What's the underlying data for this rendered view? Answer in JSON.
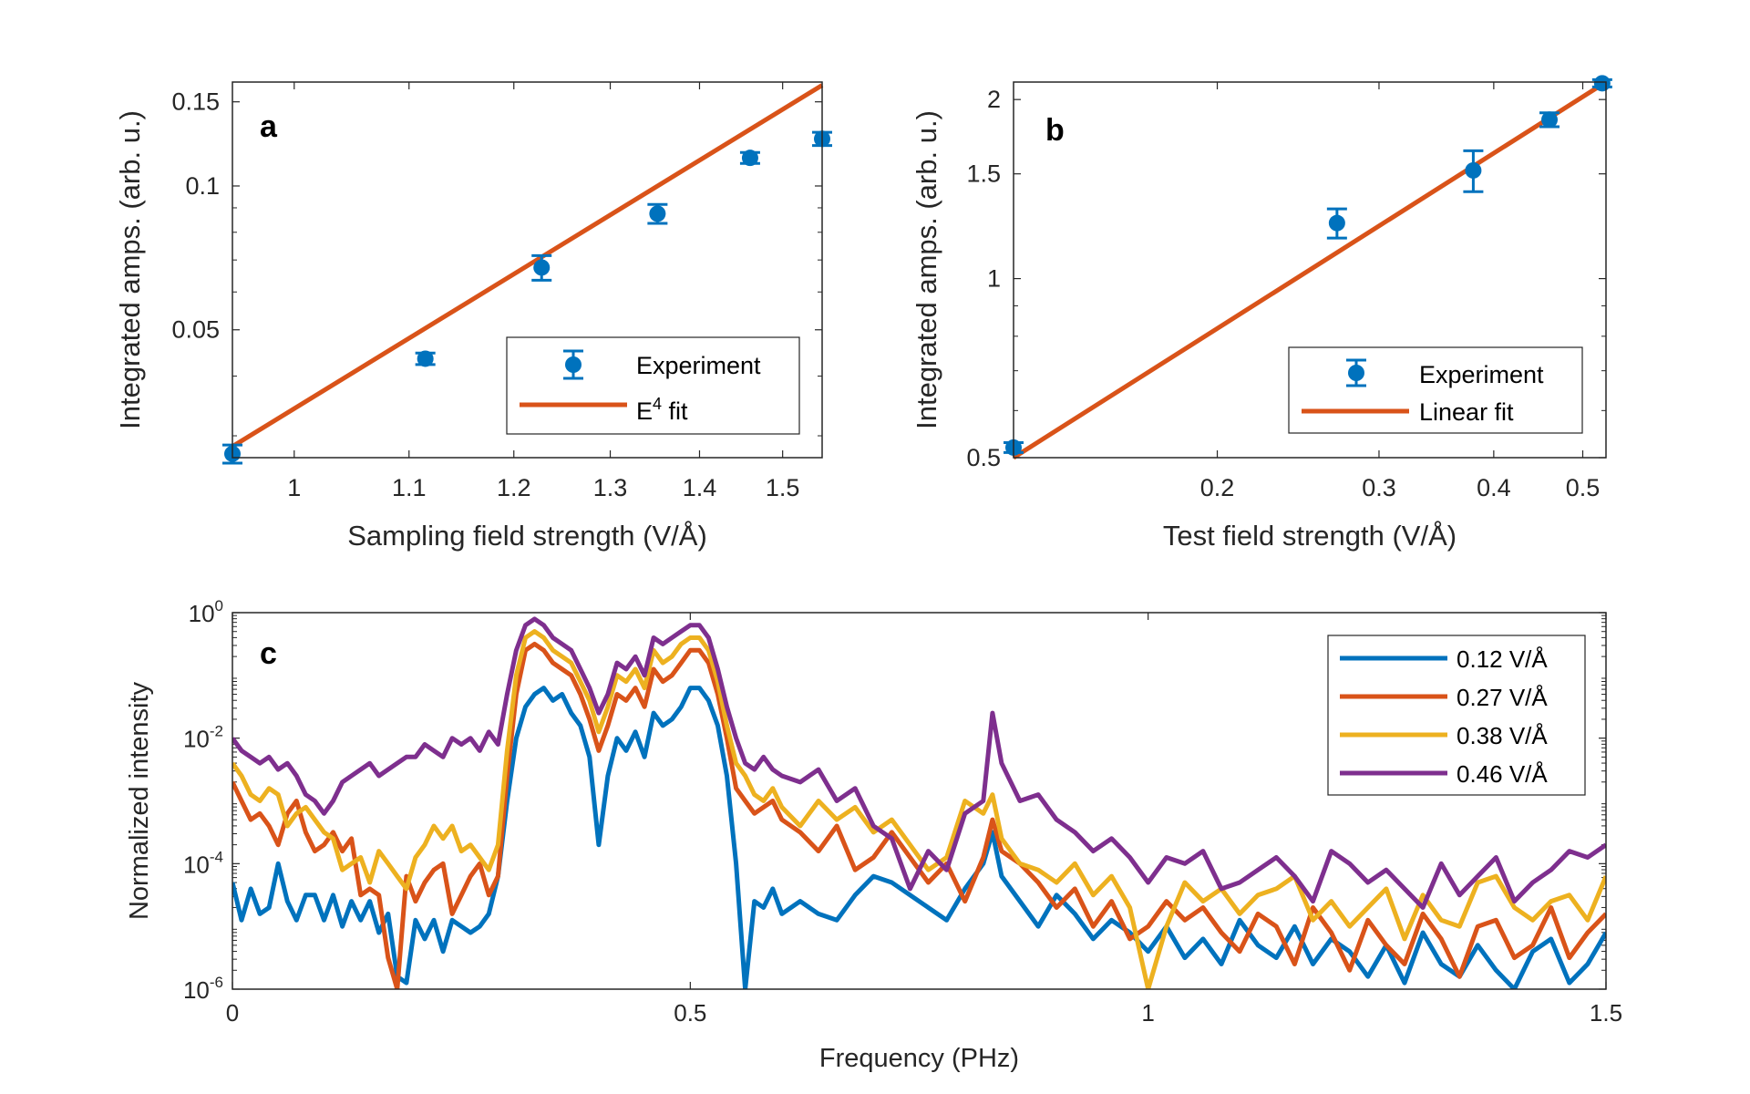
{
  "chart_data": [
    {
      "id": "a",
      "type": "scatter",
      "panel_label": "a",
      "xscale": "log",
      "yscale": "log",
      "xlabel": "Sampling field strength (V/Å)",
      "ylabel": "Integrated amps. (arb. u.)",
      "xlim": [
        0.95,
        1.55
      ],
      "ylim": [
        0.027,
        0.165
      ],
      "xticks": [
        1,
        1.1,
        1.2,
        1.3,
        1.4,
        1.5
      ],
      "xtick_labels": [
        "1",
        "1.1",
        "1.2",
        "1.3",
        "1.4",
        "1.5"
      ],
      "yticks": [
        0.05,
        0.1,
        0.15
      ],
      "ytick_labels": [
        "0.05",
        "0.1",
        "0.15"
      ],
      "legend_position": "bottom-right",
      "series": [
        {
          "name": "Experiment",
          "kind": "errorbar",
          "color": "#0072BD",
          "x": [
            0.95,
            1.115,
            1.228,
            1.352,
            1.46,
            1.55
          ],
          "y": [
            0.0275,
            0.0435,
            0.0675,
            0.0875,
            0.1145,
            0.1255
          ],
          "err": [
            0.0012,
            0.0012,
            0.004,
            0.004,
            0.003,
            0.004
          ]
        },
        {
          "name": "E⁴ fit",
          "kind": "line",
          "color": "#D95319",
          "x": [
            0.95,
            1.55
          ],
          "y": [
            0.0285,
            0.1625
          ]
        }
      ],
      "legend": {
        "experiment": "Experiment",
        "fit_prefix": "E",
        "fit_sup": "4",
        "fit_suffix": " fit"
      }
    },
    {
      "id": "b",
      "type": "scatter",
      "panel_label": "b",
      "xscale": "log",
      "yscale": "log",
      "xlabel": "Test field strength (V/Å)",
      "ylabel": "Integrated amps. (arb. u.)",
      "xlim": [
        0.12,
        0.53
      ],
      "ylim": [
        0.5,
        2.14
      ],
      "xticks": [
        0.2,
        0.3,
        0.4,
        0.5
      ],
      "xtick_labels": [
        "0.2",
        "0.3",
        "0.4",
        "0.5"
      ],
      "yticks": [
        0.5,
        1,
        1.5,
        2
      ],
      "ytick_labels": [
        "0.5",
        "1",
        "1.5",
        "2"
      ],
      "legend_position": "bottom-right",
      "series": [
        {
          "name": "Experiment",
          "kind": "errorbar",
          "color": "#0072BD",
          "x": [
            0.12,
            0.27,
            0.38,
            0.46,
            0.525
          ],
          "y": [
            0.52,
            1.24,
            1.52,
            1.85,
            2.13
          ],
          "err": [
            0.01,
            0.07,
            0.12,
            0.05,
            0.03
          ]
        },
        {
          "name": "Linear fit",
          "kind": "line",
          "color": "#D95319",
          "x": [
            0.12,
            0.53
          ],
          "y": [
            0.5,
            2.14
          ]
        }
      ],
      "legend": {
        "experiment": "Experiment",
        "fit": "Linear fit"
      }
    },
    {
      "id": "c",
      "type": "line",
      "panel_label": "c",
      "xscale": "linear",
      "yscale": "log",
      "xlabel": "Frequency (PHz)",
      "ylabel": "Normalized intensity",
      "xlim": [
        0,
        1.5
      ],
      "ylim_exponent": [
        -6,
        0
      ],
      "xticks": [
        0,
        0.5,
        1,
        1.5
      ],
      "xtick_labels": [
        "0",
        "0.5",
        "1",
        "1.5"
      ],
      "ytick_base": "10",
      "ytick_exponents": [
        "-6",
        "-4",
        "-2",
        "0"
      ],
      "legend_position": "top-right",
      "series": [
        {
          "name": "0.12 V/Å",
          "color": "#0072BD",
          "x": [
            0,
            0.01,
            0.02,
            0.03,
            0.04,
            0.05,
            0.06,
            0.07,
            0.08,
            0.09,
            0.1,
            0.11,
            0.12,
            0.13,
            0.14,
            0.15,
            0.16,
            0.17,
            0.18,
            0.19,
            0.2,
            0.21,
            0.22,
            0.23,
            0.24,
            0.25,
            0.26,
            0.27,
            0.28,
            0.29,
            0.3,
            0.31,
            0.32,
            0.33,
            0.34,
            0.35,
            0.36,
            0.37,
            0.38,
            0.39,
            0.4,
            0.41,
            0.42,
            0.43,
            0.44,
            0.45,
            0.46,
            0.47,
            0.48,
            0.49,
            0.5,
            0.51,
            0.52,
            0.53,
            0.54,
            0.55,
            0.56,
            0.57,
            0.58,
            0.59,
            0.6,
            0.62,
            0.64,
            0.66,
            0.68,
            0.7,
            0.72,
            0.74,
            0.76,
            0.78,
            0.8,
            0.82,
            0.83,
            0.84,
            0.86,
            0.88,
            0.9,
            0.92,
            0.94,
            0.96,
            0.98,
            1.0,
            1.02,
            1.04,
            1.06,
            1.08,
            1.1,
            1.12,
            1.14,
            1.16,
            1.18,
            1.2,
            1.22,
            1.24,
            1.26,
            1.28,
            1.3,
            1.32,
            1.34,
            1.36,
            1.38,
            1.4,
            1.42,
            1.44,
            1.46,
            1.48,
            1.5
          ],
          "y_exp": [
            -4.3,
            -4.9,
            -4.4,
            -4.8,
            -4.7,
            -4.0,
            -4.6,
            -4.9,
            -4.5,
            -4.5,
            -4.9,
            -4.5,
            -5.0,
            -4.6,
            -4.9,
            -4.6,
            -5.1,
            -4.8,
            -5.8,
            -5.9,
            -4.9,
            -5.2,
            -4.9,
            -5.4,
            -4.9,
            -5.0,
            -5.1,
            -5.0,
            -4.8,
            -4.2,
            -3.0,
            -2.0,
            -1.5,
            -1.3,
            -1.2,
            -1.4,
            -1.3,
            -1.6,
            -1.8,
            -2.3,
            -3.7,
            -2.6,
            -2.0,
            -2.2,
            -1.9,
            -2.3,
            -1.6,
            -1.8,
            -1.7,
            -1.5,
            -1.2,
            -1.2,
            -1.4,
            -1.8,
            -2.6,
            -4.0,
            -6.0,
            -4.6,
            -4.7,
            -4.4,
            -4.8,
            -4.6,
            -4.8,
            -4.9,
            -4.5,
            -4.2,
            -4.3,
            -4.5,
            -4.7,
            -4.9,
            -4.4,
            -4.0,
            -3.5,
            -4.2,
            -4.6,
            -5.0,
            -4.5,
            -4.8,
            -5.2,
            -4.9,
            -5.1,
            -5.4,
            -5.0,
            -5.5,
            -5.2,
            -5.6,
            -4.9,
            -5.3,
            -5.5,
            -5.0,
            -5.6,
            -5.2,
            -5.4,
            -5.8,
            -5.3,
            -5.9,
            -5.1,
            -5.6,
            -5.8,
            -5.3,
            -5.7,
            -6.0,
            -5.4,
            -5.2,
            -5.9,
            -5.6,
            -5.1
          ]
        },
        {
          "name": "0.27 V/Å",
          "color": "#D95319",
          "x": [
            0,
            0.01,
            0.02,
            0.03,
            0.04,
            0.05,
            0.06,
            0.07,
            0.08,
            0.09,
            0.1,
            0.11,
            0.12,
            0.13,
            0.14,
            0.15,
            0.16,
            0.17,
            0.18,
            0.19,
            0.2,
            0.21,
            0.22,
            0.23,
            0.24,
            0.25,
            0.26,
            0.27,
            0.28,
            0.29,
            0.3,
            0.31,
            0.32,
            0.33,
            0.34,
            0.35,
            0.36,
            0.37,
            0.38,
            0.39,
            0.4,
            0.41,
            0.42,
            0.43,
            0.44,
            0.45,
            0.46,
            0.47,
            0.48,
            0.49,
            0.5,
            0.51,
            0.52,
            0.53,
            0.54,
            0.55,
            0.56,
            0.57,
            0.58,
            0.59,
            0.6,
            0.62,
            0.64,
            0.66,
            0.68,
            0.7,
            0.72,
            0.74,
            0.76,
            0.78,
            0.8,
            0.82,
            0.83,
            0.84,
            0.86,
            0.88,
            0.9,
            0.92,
            0.94,
            0.96,
            0.98,
            1.0,
            1.02,
            1.04,
            1.06,
            1.08,
            1.1,
            1.12,
            1.14,
            1.16,
            1.18,
            1.2,
            1.22,
            1.24,
            1.26,
            1.28,
            1.3,
            1.32,
            1.34,
            1.36,
            1.38,
            1.4,
            1.42,
            1.44,
            1.46,
            1.48,
            1.5
          ],
          "y_exp": [
            -2.7,
            -3.0,
            -3.3,
            -3.2,
            -3.4,
            -3.7,
            -3.2,
            -3.0,
            -3.5,
            -3.8,
            -3.7,
            -3.5,
            -3.8,
            -3.6,
            -4.5,
            -4.4,
            -4.5,
            -5.5,
            -6.0,
            -4.2,
            -4.6,
            -4.3,
            -4.1,
            -4.0,
            -4.8,
            -4.5,
            -4.2,
            -4.0,
            -4.5,
            -4.2,
            -2.6,
            -1.3,
            -0.6,
            -0.5,
            -0.6,
            -0.8,
            -0.9,
            -1.0,
            -1.3,
            -1.7,
            -2.2,
            -1.8,
            -1.3,
            -1.4,
            -1.2,
            -1.5,
            -0.9,
            -1.1,
            -1.0,
            -0.8,
            -0.6,
            -0.6,
            -0.8,
            -1.3,
            -2.0,
            -2.8,
            -3.0,
            -3.2,
            -3.1,
            -3.0,
            -3.3,
            -3.5,
            -3.8,
            -3.4,
            -4.1,
            -3.9,
            -3.5,
            -3.9,
            -4.3,
            -4.0,
            -4.6,
            -3.9,
            -3.3,
            -3.8,
            -4.0,
            -4.3,
            -4.7,
            -4.4,
            -5.0,
            -4.6,
            -5.2,
            -5.0,
            -4.6,
            -4.9,
            -4.7,
            -5.1,
            -5.4,
            -4.8,
            -5.0,
            -5.6,
            -4.7,
            -5.1,
            -5.7,
            -4.9,
            -5.3,
            -5.6,
            -4.8,
            -5.2,
            -5.8,
            -5.0,
            -4.9,
            -5.5,
            -5.3,
            -4.7,
            -5.5,
            -5.1,
            -4.8
          ]
        },
        {
          "name": "0.38 V/Å",
          "color": "#EDB120",
          "x": [
            0,
            0.01,
            0.02,
            0.03,
            0.04,
            0.05,
            0.06,
            0.07,
            0.08,
            0.09,
            0.1,
            0.11,
            0.12,
            0.13,
            0.14,
            0.15,
            0.16,
            0.17,
            0.18,
            0.19,
            0.2,
            0.21,
            0.22,
            0.23,
            0.24,
            0.25,
            0.26,
            0.27,
            0.28,
            0.29,
            0.3,
            0.31,
            0.32,
            0.33,
            0.34,
            0.35,
            0.36,
            0.37,
            0.38,
            0.39,
            0.4,
            0.41,
            0.42,
            0.43,
            0.44,
            0.45,
            0.46,
            0.47,
            0.48,
            0.49,
            0.5,
            0.51,
            0.52,
            0.53,
            0.54,
            0.55,
            0.56,
            0.57,
            0.58,
            0.59,
            0.6,
            0.62,
            0.64,
            0.66,
            0.68,
            0.7,
            0.72,
            0.74,
            0.76,
            0.78,
            0.8,
            0.82,
            0.83,
            0.84,
            0.86,
            0.88,
            0.9,
            0.92,
            0.94,
            0.96,
            0.98,
            1.0,
            1.02,
            1.04,
            1.06,
            1.08,
            1.1,
            1.12,
            1.14,
            1.16,
            1.18,
            1.2,
            1.22,
            1.24,
            1.26,
            1.28,
            1.3,
            1.32,
            1.34,
            1.36,
            1.38,
            1.4,
            1.42,
            1.44,
            1.46,
            1.48,
            1.5
          ],
          "y_exp": [
            -2.4,
            -2.6,
            -2.9,
            -3.0,
            -2.8,
            -2.9,
            -3.4,
            -3.2,
            -3.1,
            -3.3,
            -3.5,
            -3.6,
            -4.1,
            -4.0,
            -3.9,
            -4.3,
            -3.8,
            -4.0,
            -4.2,
            -4.4,
            -3.9,
            -3.7,
            -3.4,
            -3.6,
            -3.4,
            -3.8,
            -3.7,
            -3.9,
            -4.1,
            -3.7,
            -2.2,
            -1.0,
            -0.4,
            -0.3,
            -0.4,
            -0.6,
            -0.7,
            -0.8,
            -1.1,
            -1.4,
            -1.9,
            -1.5,
            -1.0,
            -1.1,
            -0.9,
            -1.2,
            -0.6,
            -0.8,
            -0.7,
            -0.5,
            -0.4,
            -0.4,
            -0.6,
            -1.1,
            -1.8,
            -2.4,
            -2.6,
            -2.9,
            -3.0,
            -2.8,
            -3.1,
            -3.4,
            -3.0,
            -3.3,
            -3.1,
            -3.5,
            -3.3,
            -3.7,
            -4.1,
            -3.9,
            -3.0,
            -3.2,
            -2.9,
            -3.6,
            -4.0,
            -4.1,
            -4.3,
            -4.0,
            -4.5,
            -4.2,
            -4.7,
            -6.0,
            -5.0,
            -4.3,
            -4.6,
            -4.4,
            -4.8,
            -4.5,
            -4.4,
            -4.2,
            -4.9,
            -4.6,
            -5.0,
            -4.7,
            -4.4,
            -5.2,
            -4.5,
            -4.9,
            -5.0,
            -4.3,
            -4.2,
            -4.7,
            -4.9,
            -4.6,
            -4.5,
            -4.9,
            -4.2
          ]
        },
        {
          "name": "0.46 V/Å",
          "color": "#7E2F8E",
          "x": [
            0,
            0.01,
            0.02,
            0.03,
            0.04,
            0.05,
            0.06,
            0.07,
            0.08,
            0.09,
            0.1,
            0.11,
            0.12,
            0.13,
            0.14,
            0.15,
            0.16,
            0.17,
            0.18,
            0.19,
            0.2,
            0.21,
            0.22,
            0.23,
            0.24,
            0.25,
            0.26,
            0.27,
            0.28,
            0.29,
            0.3,
            0.31,
            0.32,
            0.33,
            0.34,
            0.35,
            0.36,
            0.37,
            0.38,
            0.39,
            0.4,
            0.41,
            0.42,
            0.43,
            0.44,
            0.45,
            0.46,
            0.47,
            0.48,
            0.49,
            0.5,
            0.51,
            0.52,
            0.53,
            0.54,
            0.55,
            0.56,
            0.57,
            0.58,
            0.59,
            0.6,
            0.62,
            0.64,
            0.66,
            0.68,
            0.7,
            0.72,
            0.74,
            0.76,
            0.78,
            0.8,
            0.82,
            0.83,
            0.84,
            0.86,
            0.88,
            0.9,
            0.92,
            0.94,
            0.96,
            0.98,
            1.0,
            1.02,
            1.04,
            1.06,
            1.08,
            1.1,
            1.12,
            1.14,
            1.16,
            1.18,
            1.2,
            1.22,
            1.24,
            1.26,
            1.28,
            1.3,
            1.32,
            1.34,
            1.36,
            1.38,
            1.4,
            1.42,
            1.44,
            1.46,
            1.48,
            1.5
          ],
          "y_exp": [
            -2.0,
            -2.2,
            -2.3,
            -2.4,
            -2.3,
            -2.5,
            -2.4,
            -2.6,
            -2.9,
            -3.0,
            -3.2,
            -3.0,
            -2.7,
            -2.6,
            -2.5,
            -2.4,
            -2.6,
            -2.5,
            -2.4,
            -2.3,
            -2.3,
            -2.1,
            -2.2,
            -2.3,
            -2.0,
            -2.1,
            -2.0,
            -2.2,
            -1.9,
            -2.1,
            -1.3,
            -0.6,
            -0.2,
            -0.1,
            -0.2,
            -0.4,
            -0.5,
            -0.6,
            -0.9,
            -1.2,
            -1.6,
            -1.3,
            -0.8,
            -0.9,
            -0.7,
            -1.0,
            -0.4,
            -0.5,
            -0.4,
            -0.3,
            -0.2,
            -0.2,
            -0.4,
            -0.9,
            -1.5,
            -2.0,
            -2.4,
            -2.5,
            -2.3,
            -2.5,
            -2.6,
            -2.7,
            -2.5,
            -3.0,
            -2.8,
            -3.4,
            -3.6,
            -4.4,
            -3.8,
            -4.1,
            -3.2,
            -3.0,
            -1.6,
            -2.4,
            -3.0,
            -2.9,
            -3.3,
            -3.5,
            -3.8,
            -3.6,
            -3.9,
            -4.3,
            -3.9,
            -4.0,
            -3.8,
            -4.4,
            -4.3,
            -4.1,
            -3.9,
            -4.2,
            -4.6,
            -3.8,
            -4.0,
            -4.3,
            -4.1,
            -4.4,
            -4.7,
            -4.0,
            -4.5,
            -4.2,
            -3.9,
            -4.6,
            -4.3,
            -4.1,
            -3.8,
            -3.9,
            -3.7
          ]
        }
      ]
    }
  ]
}
